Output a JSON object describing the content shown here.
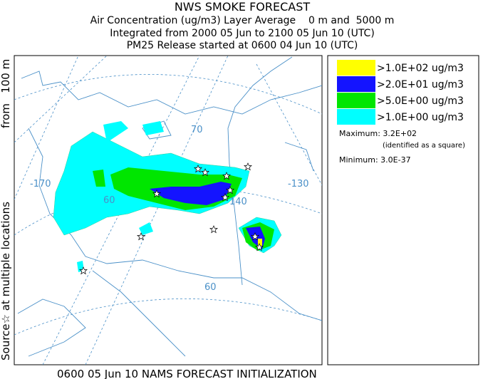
{
  "header": {
    "title": "NWS SMOKE FORECAST",
    "lines": [
      "Air Concentration (ug/m3) Layer Average    0 m and  5000 m",
      "Integrated from 2000 05 Jun to 2100 05 Jun 10 (UTC)",
      "PM25 Release started at 0600 04 Jun 10 (UTC)"
    ]
  },
  "side_label": {
    "source": "Source☆ at multiple locations",
    "height": "from   100 m"
  },
  "map_labels": [
    "70",
    "-170",
    "60",
    "140",
    "-130",
    "60"
  ],
  "legend": {
    "items": [
      {
        "label": ">1.0E+02 ug/m3",
        "color": "#ffff00"
      },
      {
        "label": ">2.0E+01 ug/m3",
        "color": "#1414ff"
      },
      {
        "label": ">5.0E+00 ug/m3",
        "color": "#00e600"
      },
      {
        "label": ">1.0E+00 ug/m3",
        "color": "#00ffff"
      }
    ],
    "maximum": "Maximum: 3.2E+02",
    "maximum_note": "(identified as a square)",
    "minimum": "Minimum: 3.0E-37"
  },
  "footer": "0600 05 Jun 10 NAMS FORECAST INITIALIZATION"
}
